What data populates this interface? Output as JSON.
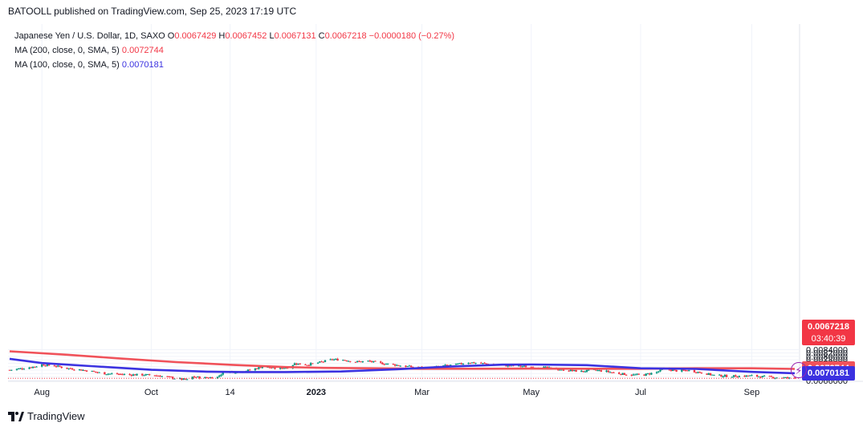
{
  "attribution": "BATOOLL published on TradingView.com, Sep 25, 2023 17:19 UTC",
  "legend": {
    "symbol": "Japanese Yen / U.S. Dollar, 1D, SAXO",
    "o_label": "O",
    "o_value": "0.0067429",
    "h_label": "H",
    "h_value": "0.0067452",
    "l_label": "L",
    "l_value": "0.0067131",
    "c_label": "C",
    "c_value": "0.0067218",
    "change": "−0.0000180 (−0.27%)",
    "ma200_label": "MA (200, close, 0, SMA, 5)",
    "ma200_value": "0.0072744",
    "ma100_label": "MA (100, close, 0, SMA, 5)",
    "ma100_value": "0.0070181"
  },
  "last_price": {
    "price": "0.0067218",
    "countdown": "03:40:39"
  },
  "footer": {
    "brand": "TradingView",
    "logo_icon": "tradingview-logo-icon"
  },
  "colors": {
    "up": "#089981",
    "down": "#f23645",
    "ma200": "#f0525a",
    "ma100": "#3b32e0",
    "grid": "#f0f3fa"
  },
  "chart_data": {
    "type": "candlestick",
    "instrument": "Japanese Yen / U.S. Dollar, 1D, SAXO",
    "y_ticks": [
      "0.0066000",
      "0.0068000",
      "0.0070000",
      "0.0072000",
      "0.0074000",
      "0.0076000",
      "0.0078000",
      "0.0080000",
      "0.0082000",
      "0.0084000"
    ],
    "ylim": [
      0.00652,
      0.00856
    ],
    "x_ticks": [
      "Aug",
      "Oct",
      "14",
      "2023",
      "Mar",
      "May",
      "Jul",
      "Sep"
    ],
    "close_series": {
      "dates": [
        "2022-07-14",
        "2022-07-21",
        "2022-07-28",
        "2022-08-01",
        "2022-08-08",
        "2022-08-15",
        "2022-08-22",
        "2022-08-29",
        "2022-09-05",
        "2022-09-12",
        "2022-09-19",
        "2022-09-26",
        "2022-10-03",
        "2022-10-10",
        "2022-10-17",
        "2022-10-21",
        "2022-10-24",
        "2022-10-31",
        "2022-11-07",
        "2022-11-11",
        "2022-11-18",
        "2022-11-25",
        "2022-12-02",
        "2022-12-09",
        "2022-12-16",
        "2022-12-20",
        "2022-12-27",
        "2023-01-03",
        "2023-01-10",
        "2023-01-16",
        "2023-01-23",
        "2023-01-30",
        "2023-02-06",
        "2023-02-13",
        "2023-02-20",
        "2023-02-27",
        "2023-03-06",
        "2023-03-13",
        "2023-03-20",
        "2023-03-27",
        "2023-04-03",
        "2023-04-10",
        "2023-04-17",
        "2023-04-24",
        "2023-05-01",
        "2023-05-08",
        "2023-05-15",
        "2023-05-22",
        "2023-05-29",
        "2023-06-05",
        "2023-06-12",
        "2023-06-19",
        "2023-06-26",
        "2023-07-03",
        "2023-07-10",
        "2023-07-14",
        "2023-07-21",
        "2023-07-28",
        "2023-08-04",
        "2023-08-11",
        "2023-08-18",
        "2023-08-25",
        "2023-09-01",
        "2023-09-08",
        "2023-09-15",
        "2023-09-25"
      ],
      "close": [
        0.00721,
        0.0073,
        0.00741,
        0.00752,
        0.00745,
        0.00731,
        0.00723,
        0.00712,
        0.007,
        0.00697,
        0.00693,
        0.00693,
        0.0069,
        0.0068,
        0.00668,
        0.00663,
        0.00681,
        0.00675,
        0.0068,
        0.00714,
        0.00708,
        0.0072,
        0.0074,
        0.0073,
        0.00735,
        0.00758,
        0.00752,
        0.00765,
        0.00782,
        0.0078,
        0.00768,
        0.00772,
        0.0076,
        0.00752,
        0.00742,
        0.00736,
        0.00732,
        0.00745,
        0.00752,
        0.00765,
        0.0076,
        0.00752,
        0.00746,
        0.00744,
        0.00738,
        0.00735,
        0.00726,
        0.00718,
        0.00712,
        0.0072,
        0.00712,
        0.007,
        0.00692,
        0.00693,
        0.00708,
        0.00727,
        0.00716,
        0.00718,
        0.00705,
        0.0069,
        0.00685,
        0.00685,
        0.00687,
        0.00681,
        0.00677,
        0.00672
      ]
    },
    "ma200": {
      "dates": [
        "2022-07-14",
        "2022-08-15",
        "2022-09-15",
        "2022-10-15",
        "2022-11-15",
        "2022-12-15",
        "2023-01-05",
        "2023-02-01",
        "2023-03-01",
        "2023-04-01",
        "2023-05-01",
        "2023-06-01",
        "2023-07-01",
        "2023-08-01",
        "2023-09-01",
        "2023-09-25"
      ],
      "values": [
        0.0083,
        0.0081,
        0.00787,
        0.00767,
        0.00751,
        0.00738,
        0.00733,
        0.00731,
        0.00728,
        0.00728,
        0.00729,
        0.00728,
        0.00728,
        0.00731,
        0.00731,
        0.00727
      ]
    },
    "ma100": {
      "dates": [
        "2022-07-14",
        "2022-08-01",
        "2022-09-01",
        "2022-10-01",
        "2022-11-01",
        "2022-11-20",
        "2022-12-15",
        "2023-01-15",
        "2023-02-15",
        "2023-03-15",
        "2023-04-15",
        "2023-05-01",
        "2023-06-01",
        "2023-07-01",
        "2023-08-01",
        "2023-09-01",
        "2023-09-25"
      ],
      "values": [
        0.00786,
        0.00761,
        0.00741,
        0.00722,
        0.00711,
        0.00709,
        0.00709,
        0.00712,
        0.00725,
        0.0074,
        0.00752,
        0.00753,
        0.00749,
        0.00731,
        0.00727,
        0.0071,
        0.00702
      ]
    }
  }
}
